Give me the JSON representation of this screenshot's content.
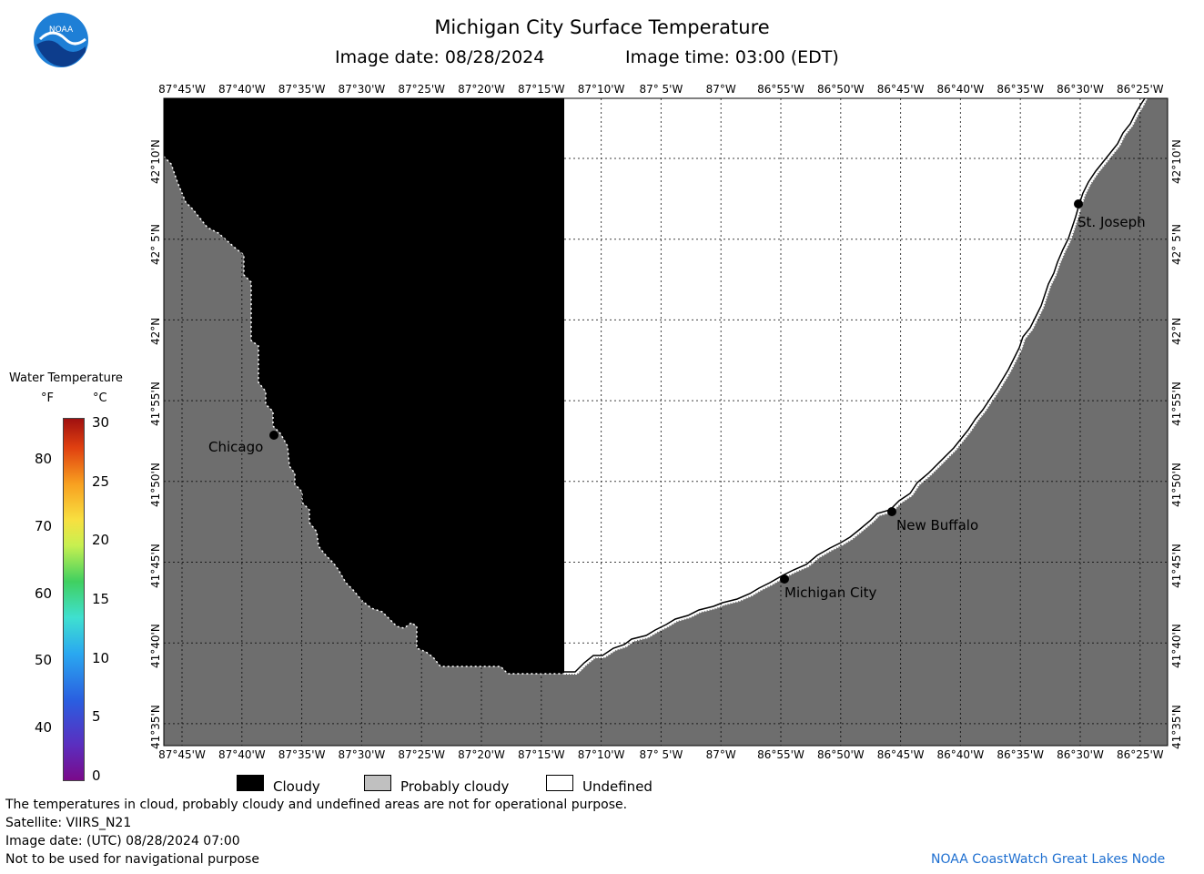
{
  "header": {
    "title": "Michigan City Surface Temperature",
    "image_date": "Image date: 08/28/2024",
    "image_time": "Image time: 03:00 (EDT)"
  },
  "logo": {
    "text": "NOAA",
    "color": "#1e7fd6"
  },
  "lon_ticks": [
    "87°45'W",
    "87°40'W",
    "87°35'W",
    "87°30'W",
    "87°25'W",
    "87°20'W",
    "87°15'W",
    "87°10'W",
    "87° 5'W",
    "87°W",
    "86°55'W",
    "86°50'W",
    "86°45'W",
    "86°40'W",
    "86°35'W",
    "86°30'W",
    "86°25'W"
  ],
  "lat_ticks": [
    "42°10'N",
    "42° 5'N",
    "42°N",
    "41°55'N",
    "41°50'N",
    "41°45'N",
    "41°40'N",
    "41°35'N"
  ],
  "cities": [
    {
      "name": "Chicago"
    },
    {
      "name": "St. Joseph"
    },
    {
      "name": "New Buffalo"
    },
    {
      "name": "Michigan City"
    }
  ],
  "colorbar": {
    "title": "Water Temperature",
    "unit_f": "°F",
    "unit_c": "°C",
    "f_ticks": [
      "80",
      "70",
      "60",
      "50",
      "40"
    ],
    "c_ticks": [
      "30",
      "25",
      "20",
      "15",
      "10",
      "5",
      "0"
    ]
  },
  "legend": {
    "cloudy": "Cloudy",
    "probably_cloudy": "Probably cloudy",
    "undefined": "Undefined",
    "colors": {
      "cloudy": "#000000",
      "probably_cloudy": "#c0c0c0",
      "undefined": "#ffffff",
      "land": "#6e6e6e"
    }
  },
  "footer": {
    "line1": "The temperatures in cloud, probably cloudy and undefined areas are not for operational purpose.",
    "line2": "Satellite: VIIRS_N21",
    "line3": "Image date: (UTC) 08/28/2024  07:00",
    "line4": "Not to be used for navigational purpose",
    "credit": "NOAA CoastWatch Great Lakes Node",
    "credit_color": "#1e6fd0"
  }
}
